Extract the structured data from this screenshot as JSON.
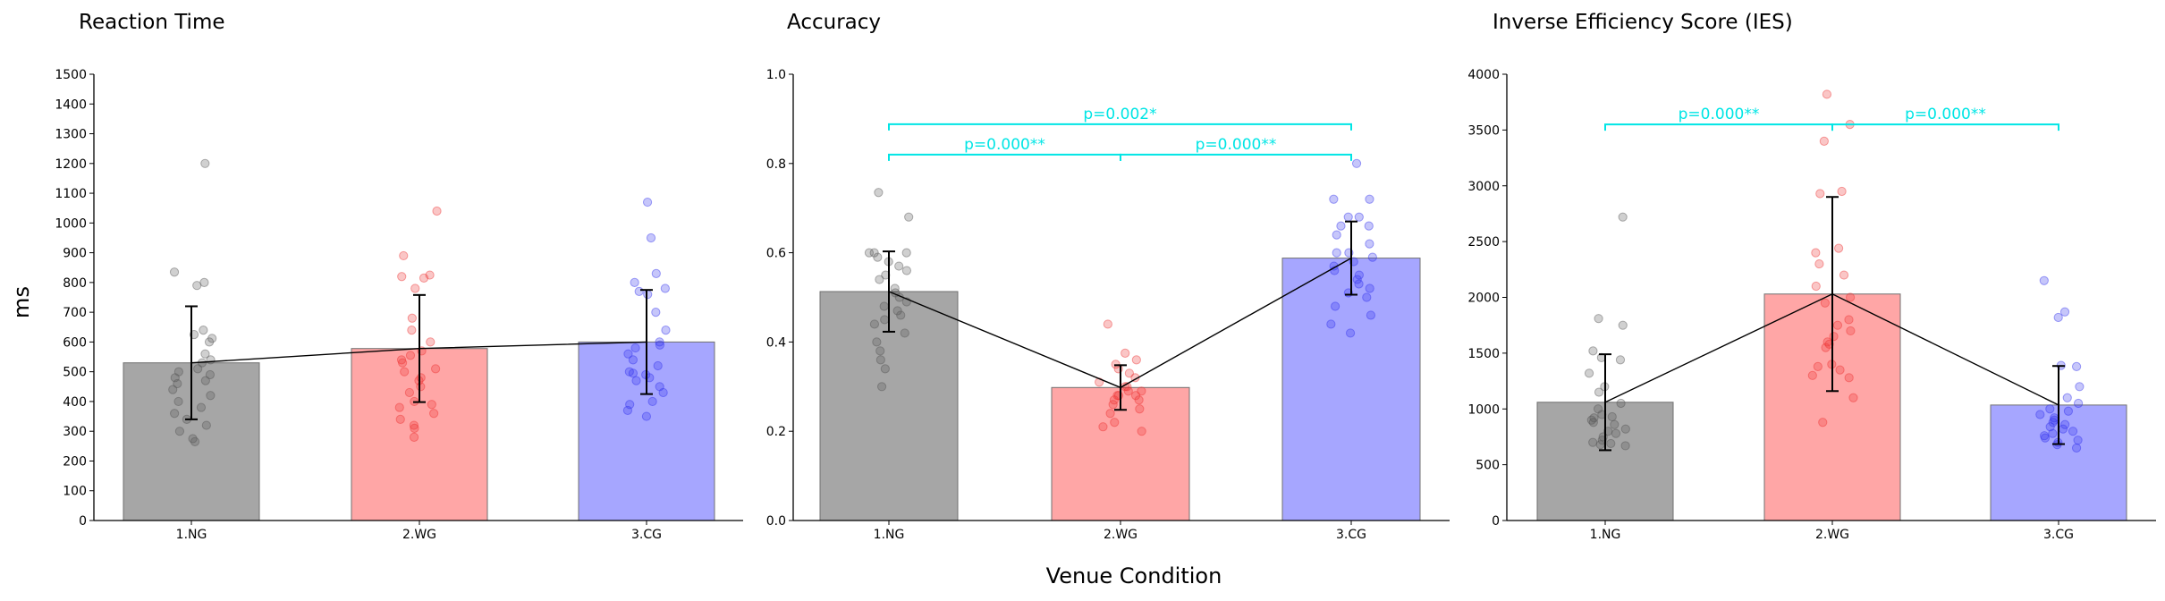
{
  "figure": {
    "shared_xlabel": "Venue Condition",
    "shared_ylabel": "ms",
    "colors": {
      "bar_fill": [
        "#a6a6a6",
        "#ffa6a6",
        "#a6a6ff"
      ],
      "dots": [
        "#555555",
        "#ee3333",
        "#3333ee"
      ],
      "bar_edge": "#707070",
      "significance": "#00e5e5",
      "errorbar": "#000000",
      "trend_line": "#000000"
    }
  },
  "chart_data": [
    {
      "type": "bar",
      "title": "Reaction Time",
      "categories": [
        "1.NG",
        "2.WG",
        "3.CG"
      ],
      "values": [
        530,
        578,
        600
      ],
      "error": [
        190,
        180,
        175
      ],
      "ylim": [
        0,
        1500
      ],
      "yticks": [
        "0",
        "100",
        "200",
        "300",
        "400",
        "500",
        "600",
        "700",
        "800",
        "900",
        "1000",
        "1100",
        "1200",
        "1300",
        "1400",
        "1500"
      ],
      "connect_means": true,
      "points": [
        [
          1200,
          835,
          800,
          790,
          640,
          625,
          612,
          600,
          560,
          540,
          530,
          510,
          500,
          490,
          480,
          470,
          460,
          440,
          420,
          400,
          380,
          360,
          340,
          320,
          300,
          275,
          265
        ],
        [
          1040,
          890,
          825,
          820,
          815,
          780,
          680,
          640,
          600,
          570,
          555,
          540,
          530,
          510,
          500,
          480,
          470,
          450,
          430,
          400,
          390,
          380,
          360,
          340,
          320,
          310,
          280
        ],
        [
          1070,
          950,
          830,
          800,
          780,
          770,
          760,
          700,
          640,
          600,
          590,
          580,
          560,
          540,
          520,
          500,
          495,
          490,
          480,
          470,
          450,
          430,
          400,
          390,
          370,
          350
        ]
      ],
      "significance": []
    },
    {
      "type": "bar",
      "title": "Accuracy",
      "categories": [
        "1.NG",
        "2.WG",
        "3.CG"
      ],
      "values": [
        0.513,
        0.298,
        0.588
      ],
      "error": [
        0.09,
        0.05,
        0.082
      ],
      "ylim": [
        0,
        1.0
      ],
      "yticks": [
        "0.0",
        "0.2",
        "0.4",
        "0.6",
        "0.8",
        "1.0"
      ],
      "connect_means": true,
      "points": [
        [
          0.735,
          0.68,
          0.6,
          0.6,
          0.6,
          0.59,
          0.58,
          0.57,
          0.56,
          0.55,
          0.54,
          0.52,
          0.51,
          0.5,
          0.49,
          0.48,
          0.47,
          0.46,
          0.45,
          0.44,
          0.42,
          0.4,
          0.38,
          0.36,
          0.34,
          0.3
        ],
        [
          0.44,
          0.375,
          0.36,
          0.35,
          0.34,
          0.33,
          0.32,
          0.31,
          0.3,
          0.3,
          0.29,
          0.29,
          0.28,
          0.28,
          0.28,
          0.27,
          0.27,
          0.26,
          0.25,
          0.24,
          0.22,
          0.21,
          0.2
        ],
        [
          0.8,
          0.72,
          0.72,
          0.68,
          0.68,
          0.66,
          0.66,
          0.64,
          0.62,
          0.6,
          0.6,
          0.59,
          0.58,
          0.57,
          0.56,
          0.55,
          0.54,
          0.53,
          0.52,
          0.51,
          0.5,
          0.48,
          0.46,
          0.44,
          0.42
        ]
      ],
      "significance": [
        {
          "from": 0,
          "to": 1,
          "level": 0.82,
          "label": "p=0.000**"
        },
        {
          "from": 1,
          "to": 2,
          "level": 0.82,
          "label": "p=0.000**"
        },
        {
          "from": 0,
          "to": 2,
          "level": 0.888,
          "label": "p=0.002*"
        }
      ]
    },
    {
      "type": "bar",
      "title": "Inverse Efficiency Score (IES)",
      "categories": [
        "1.NG",
        "2.WG",
        "3.CG"
      ],
      "values": [
        1060,
        2030,
        1035
      ],
      "error": [
        430,
        870,
        350
      ],
      "ylim": [
        0,
        4000
      ],
      "yticks": [
        "0",
        "500",
        "1000",
        "1500",
        "2000",
        "2500",
        "3000",
        "3500",
        "4000"
      ],
      "connect_means": true,
      "points": [
        [
          2720,
          1810,
          1750,
          1520,
          1460,
          1440,
          1320,
          1200,
          1150,
          1050,
          1000,
          950,
          930,
          920,
          900,
          880,
          860,
          820,
          800,
          780,
          750,
          720,
          700,
          690,
          680,
          670
        ],
        [
          3820,
          3550,
          3400,
          2950,
          2930,
          2440,
          2400,
          2300,
          2200,
          2100,
          2000,
          1950,
          1800,
          1750,
          1700,
          1650,
          1600,
          1580,
          1550,
          1400,
          1380,
          1350,
          1300,
          1280,
          1100,
          880
        ],
        [
          2150,
          1870,
          1820,
          1390,
          1380,
          1200,
          1100,
          1050,
          1000,
          980,
          950,
          920,
          900,
          880,
          860,
          840,
          820,
          800,
          780,
          760,
          740,
          720,
          700,
          680,
          650
        ]
      ],
      "significance": [
        {
          "from": 0,
          "to": 1,
          "level": 3550,
          "label": "p=0.000**"
        },
        {
          "from": 1,
          "to": 2,
          "level": 3550,
          "label": "p=0.000**"
        }
      ]
    }
  ]
}
